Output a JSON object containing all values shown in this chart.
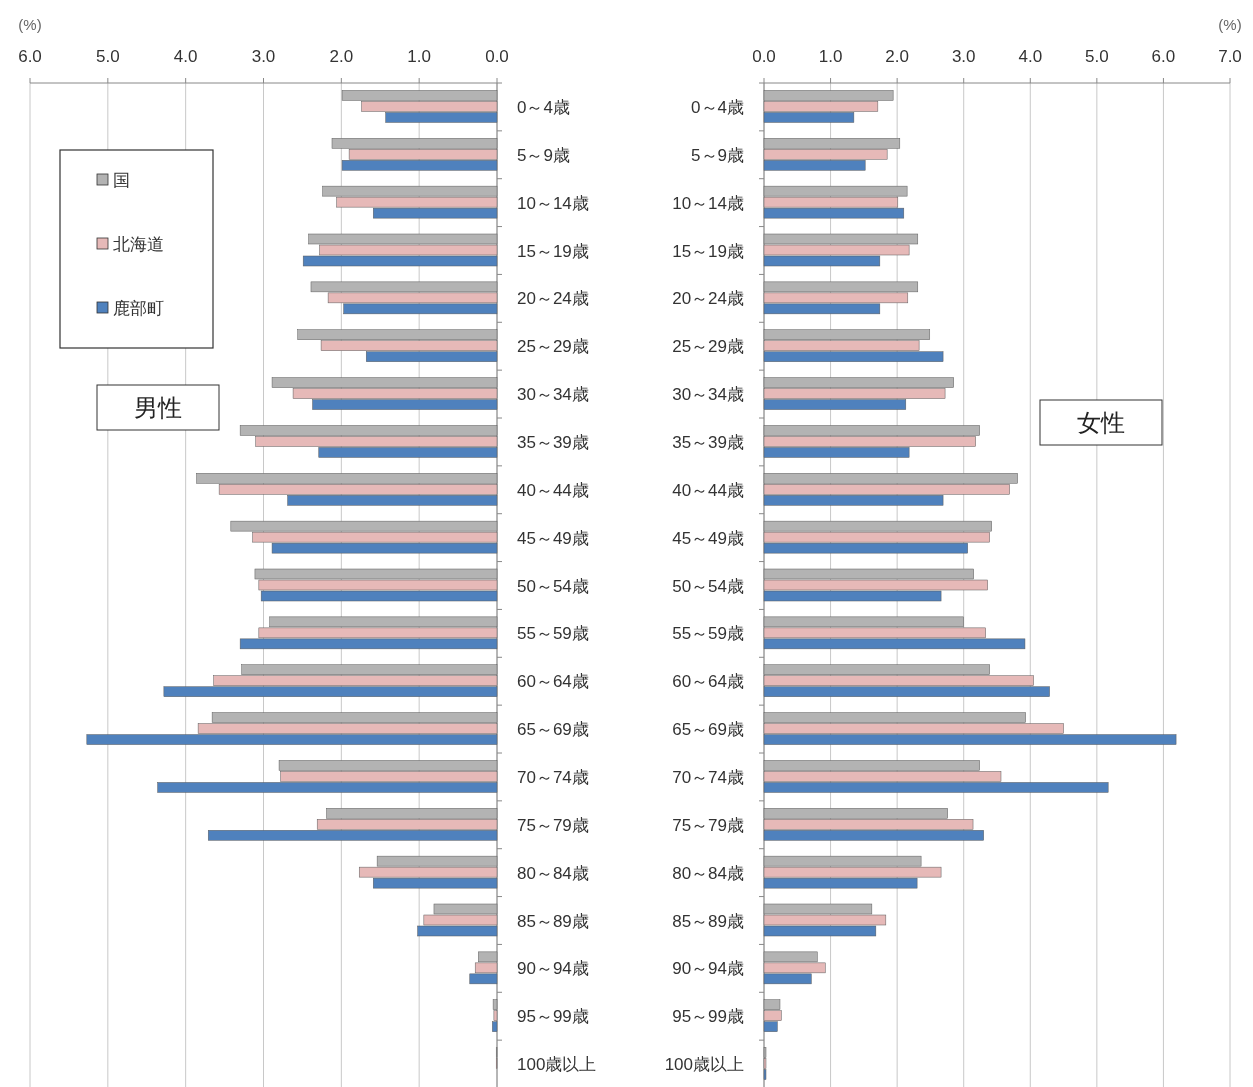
{
  "chart_data": [
    {
      "type": "bar",
      "orientation": "horizontal",
      "xlabel": "(%)",
      "xlim": [
        6.0,
        0.0
      ],
      "xticks": [
        {
          "value": 6,
          "label": "6.0"
        },
        {
          "value": 5,
          "label": "5.0"
        },
        {
          "value": 4,
          "label": "4.0"
        },
        {
          "value": 3,
          "label": "3.0"
        },
        {
          "value": 2,
          "label": "2.0"
        },
        {
          "value": 1,
          "label": "1.0"
        },
        {
          "value": 0,
          "label": "0.0"
        }
      ],
      "grid": "x",
      "legend": "top left",
      "annotations": [
        "男性"
      ],
      "categories": [
        "0～4歳",
        "5～9歳",
        "10～14歳",
        "15～19歳",
        "20～24歳",
        "25～29歳",
        "30～34歳",
        "35～39歳",
        "40～44歳",
        "45～49歳",
        "50～54歳",
        "55～59歳",
        "60～64歳",
        "65～69歳",
        "70～74歳",
        "75～79歳",
        "80～84歳",
        "85～89歳",
        "90～94歳",
        "95～99歳",
        "100歳以上"
      ],
      "series": [
        {
          "name": "国",
          "color": "#b3b3b3",
          "values": [
            1.99,
            2.12,
            2.24,
            2.42,
            2.39,
            2.56,
            2.89,
            3.3,
            3.86,
            3.42,
            3.11,
            2.92,
            3.28,
            3.66,
            2.8,
            2.19,
            1.54,
            0.81,
            0.24,
            0.05,
            0.01
          ]
        },
        {
          "name": "北海道",
          "color": "#e6b9b8",
          "values": [
            1.74,
            1.9,
            2.06,
            2.28,
            2.17,
            2.26,
            2.62,
            3.1,
            3.57,
            3.14,
            3.06,
            3.06,
            3.64,
            3.84,
            2.78,
            2.31,
            1.77,
            0.94,
            0.28,
            0.04,
            0.01
          ]
        },
        {
          "name": "鹿部町",
          "color": "#4f81bd",
          "values": [
            1.43,
            1.99,
            1.59,
            2.49,
            1.97,
            1.68,
            2.37,
            2.29,
            2.69,
            2.89,
            3.03,
            3.3,
            4.28,
            5.27,
            4.36,
            3.71,
            1.59,
            1.02,
            0.35,
            0.06,
            0.0
          ]
        }
      ]
    },
    {
      "type": "bar",
      "orientation": "horizontal",
      "xlabel": "(%)",
      "xlim": [
        0.0,
        7.0
      ],
      "xticks": [
        {
          "value": 0,
          "label": "0.0"
        },
        {
          "value": 1,
          "label": "1.0"
        },
        {
          "value": 2,
          "label": "2.0"
        },
        {
          "value": 3,
          "label": "3.0"
        },
        {
          "value": 4,
          "label": "4.0"
        },
        {
          "value": 5,
          "label": "5.0"
        },
        {
          "value": 6,
          "label": "6.0"
        },
        {
          "value": 7,
          "label": "7.0"
        }
      ],
      "grid": "x",
      "annotations": [
        "女性"
      ],
      "categories": [
        "0～4歳",
        "5～9歳",
        "10～14歳",
        "15～19歳",
        "20～24歳",
        "25～29歳",
        "30～34歳",
        "35～39歳",
        "40～44歳",
        "45～49歳",
        "50～54歳",
        "55～59歳",
        "60～64歳",
        "65～69歳",
        "70～74歳",
        "75～79歳",
        "80～84歳",
        "85～89歳",
        "90～94歳",
        "95～99歳",
        "100歳以上"
      ],
      "series": [
        {
          "color": "#b3b3b3",
          "values": [
            1.94,
            2.04,
            2.15,
            2.31,
            2.31,
            2.49,
            2.85,
            3.24,
            3.81,
            3.42,
            3.15,
            3.0,
            3.39,
            3.93,
            3.24,
            2.76,
            2.36,
            1.62,
            0.8,
            0.24,
            0.03
          ]
        },
        {
          "color": "#e6b9b8",
          "values": [
            1.71,
            1.85,
            2.01,
            2.18,
            2.16,
            2.33,
            2.72,
            3.18,
            3.69,
            3.39,
            3.36,
            3.33,
            4.05,
            4.5,
            3.56,
            3.14,
            2.66,
            1.83,
            0.92,
            0.26,
            0.03
          ]
        },
        {
          "color": "#4f81bd",
          "values": [
            1.35,
            1.52,
            2.1,
            1.74,
            1.74,
            2.69,
            2.13,
            2.18,
            2.69,
            3.06,
            2.66,
            3.92,
            4.29,
            6.19,
            5.17,
            3.3,
            2.3,
            1.68,
            0.71,
            0.2,
            0.03
          ]
        }
      ]
    }
  ]
}
